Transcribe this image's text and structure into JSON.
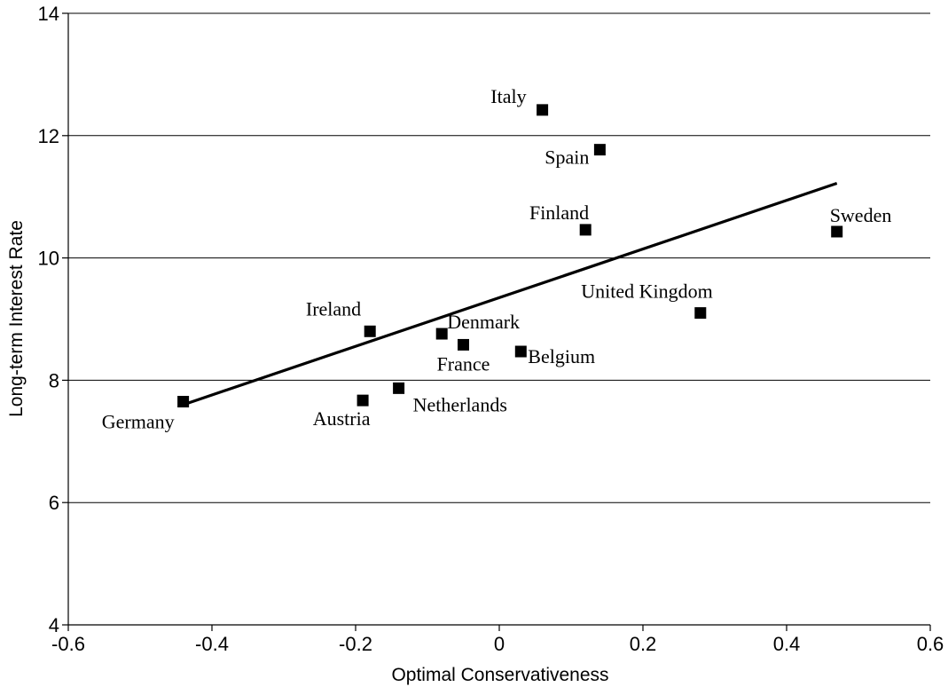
{
  "chart_data": {
    "type": "scatter",
    "title": "",
    "xlabel": "Optimal Conservativeness",
    "ylabel": "Long-term Interest Rate",
    "xlim": [
      -0.6,
      0.6
    ],
    "ylim": [
      4,
      14
    ],
    "xticks": [
      -0.6,
      -0.4,
      -0.2,
      0,
      0.2,
      0.4,
      0.6
    ],
    "xtick_labels": [
      "-0.6",
      "-0.4",
      "-0.2",
      "0",
      "0.2",
      "0.4",
      "0.6"
    ],
    "yticks": [
      4,
      6,
      8,
      10,
      12,
      14
    ],
    "ytick_labels": [
      "4",
      "6",
      "8",
      "10",
      "12",
      "14"
    ],
    "grid": "horizontal",
    "legend": "none",
    "marker": "square",
    "points": [
      {
        "label": "Germany",
        "x": -0.44,
        "y": 7.65,
        "label_pos": "below-left"
      },
      {
        "label": "Austria",
        "x": -0.19,
        "y": 7.67,
        "label_pos": "below"
      },
      {
        "label": "Netherlands",
        "x": -0.14,
        "y": 7.87,
        "label_pos": "below-right"
      },
      {
        "label": "Ireland",
        "x": -0.18,
        "y": 8.8,
        "label_pos": "above-left"
      },
      {
        "label": "Denmark",
        "x": -0.08,
        "y": 8.76,
        "label_pos": "above-right"
      },
      {
        "label": "France",
        "x": -0.05,
        "y": 8.58,
        "label_pos": "below"
      },
      {
        "label": "Belgium",
        "x": 0.03,
        "y": 8.47,
        "label_pos": "right"
      },
      {
        "label": "Italy",
        "x": 0.06,
        "y": 12.42,
        "label_pos": "above-left"
      },
      {
        "label": "Spain",
        "x": 0.14,
        "y": 11.77,
        "label_pos": "left"
      },
      {
        "label": "Finland",
        "x": 0.12,
        "y": 10.46,
        "label_pos": "above-left"
      },
      {
        "label": "United Kingdom",
        "x": 0.28,
        "y": 9.1,
        "label_pos": "above-left"
      },
      {
        "label": "Sweden",
        "x": 0.47,
        "y": 10.43,
        "label_pos": "above-right"
      }
    ],
    "trend_line": {
      "x": [
        -0.44,
        0.47
      ],
      "y": [
        7.6,
        11.22
      ]
    }
  }
}
